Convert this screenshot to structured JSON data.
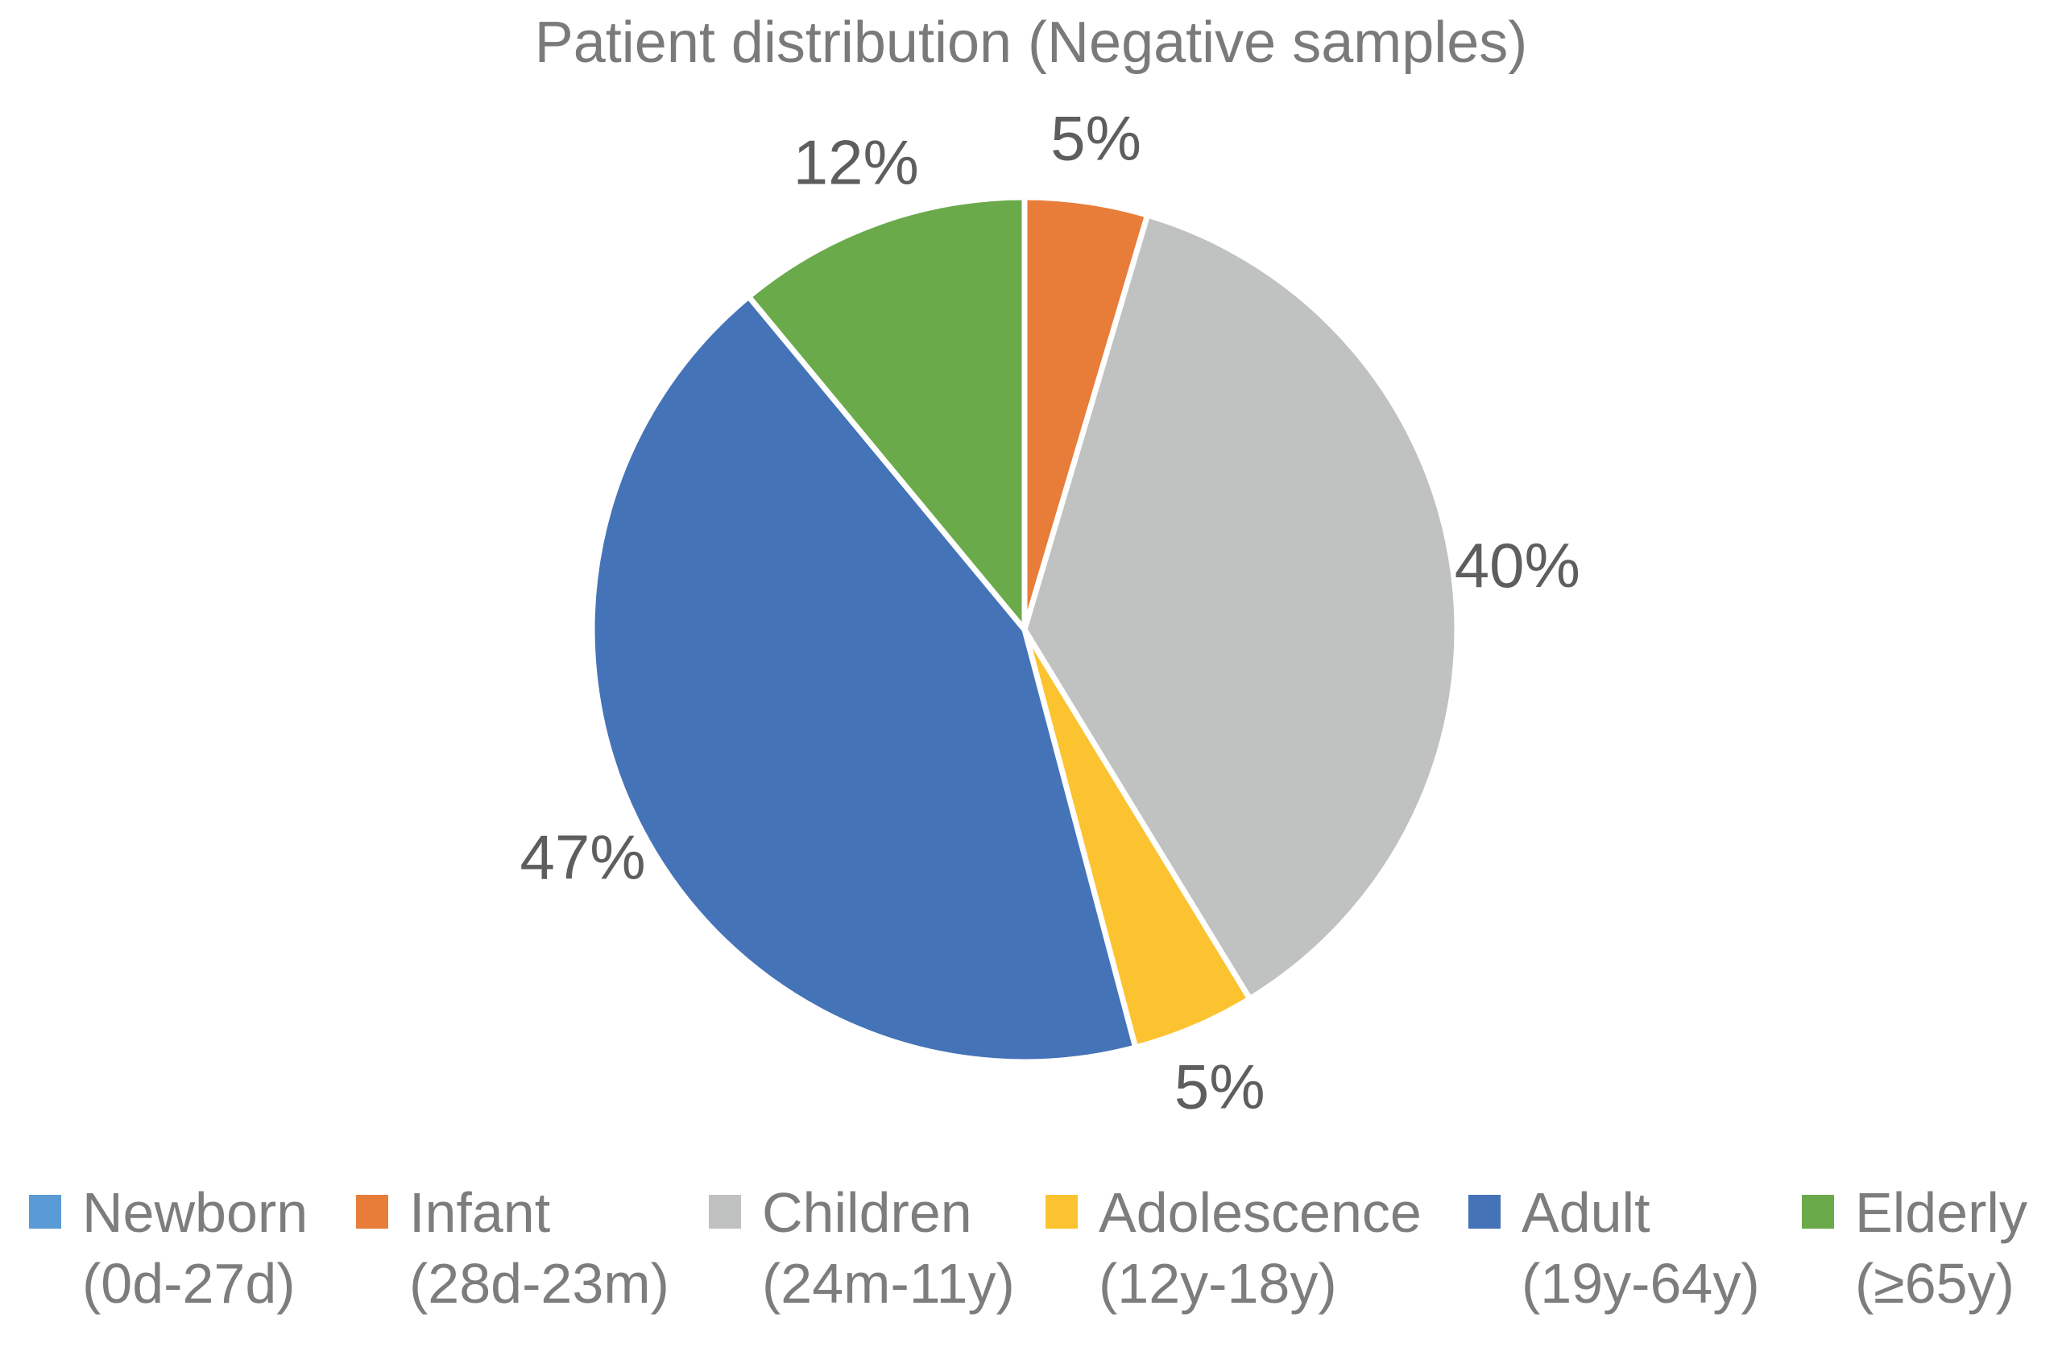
{
  "title": "Patient distribution (Negative samples)",
  "colors": {
    "background": "#FFFFFF",
    "title_text": "#7A7A7A",
    "slice_label_text": "#5E5E5E",
    "legend_text": "#7D7D7D",
    "slice_border": "#FFFFFF",
    "newborn": "#5B9BD5",
    "infant": "#E87D3A",
    "children": "#C0C1C1",
    "adolescence": "#FCC330",
    "adult": "#4573B8",
    "elderly": "#6AAA4B"
  },
  "chart_data": {
    "type": "pie",
    "title": "Patient distribution (Negative samples)",
    "start_angle_deg": 0,
    "direction": "clockwise",
    "label_position": "outside",
    "legend_position": "bottom",
    "unit": "%",
    "slices": [
      {
        "name": "Newborn",
        "range": "(0d-27d)",
        "value": 0,
        "label": "",
        "color": "#5B9BD5"
      },
      {
        "name": "Infant",
        "range": "(28d-23m)",
        "value": 5,
        "label": "5%",
        "color": "#E87D3A"
      },
      {
        "name": "Children",
        "range": "(24m-11y)",
        "value": 40,
        "label": "40%",
        "color": "#C0C1C1"
      },
      {
        "name": "Adolescence",
        "range": "(12y-18y)",
        "value": 5,
        "label": "5%",
        "color": "#FCC330"
      },
      {
        "name": "Adult",
        "range": "(19y-64y)",
        "value": 47,
        "label": "47%",
        "color": "#4573B8"
      },
      {
        "name": "Elderly",
        "range": "(≥65y)",
        "value": 12,
        "label": "12%",
        "color": "#6AAA4B"
      }
    ]
  }
}
